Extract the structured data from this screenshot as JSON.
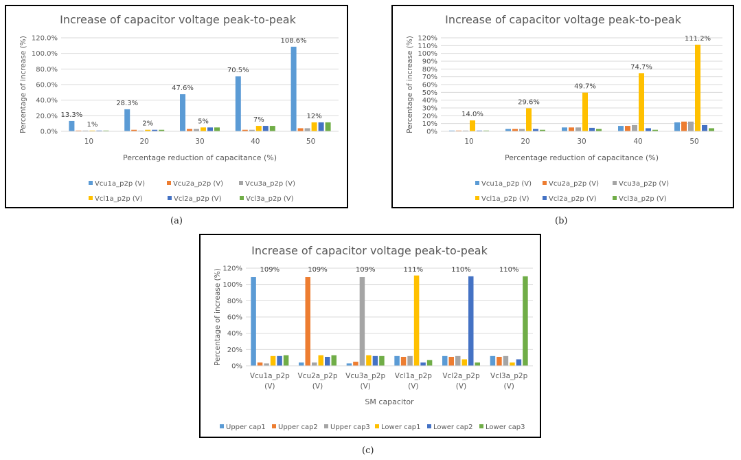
{
  "colors": {
    "Vcu1a": "#5b9bd5",
    "Vcu2a": "#ed7d31",
    "Vcu3a": "#a5a5a5",
    "Vcl1a": "#ffc000",
    "Vcl2a": "#4472c4",
    "Vcl3a": "#70ad47",
    "grid": "#d9d9d9",
    "text": "#595959"
  },
  "captions": [
    "(a)",
    "(b)",
    "(c)"
  ],
  "chart_data": [
    {
      "type": "bar",
      "title": "Increase of capacitor voltage peak-to-peak",
      "xlabel": "Percentage reduction of capacitance (%)",
      "ylabel": "Percentage of increase (%)",
      "ylim": [
        0,
        120
      ],
      "yticks": [
        "0.0%",
        "20.0%",
        "40.0%",
        "60.0%",
        "80.0%",
        "100.0%",
        "120.0%"
      ],
      "categories": [
        "10",
        "20",
        "30",
        "40",
        "50"
      ],
      "legend_position": "bottom",
      "series": [
        {
          "name": "Vcu1a_p2p (V)",
          "values": [
            13.3,
            28.3,
            47.6,
            70.5,
            108.6
          ],
          "labels": [
            "13.3%",
            "28.3%",
            "47.6%",
            "70.5%",
            "108.6%"
          ]
        },
        {
          "name": "Vcu2a_p2p (V)",
          "values": [
            1,
            2,
            3,
            2,
            4
          ]
        },
        {
          "name": "Vcu3a_p2p (V)",
          "values": [
            1,
            1,
            3,
            2,
            4
          ]
        },
        {
          "name": "Vcl1a_p2p (V)",
          "values": [
            1,
            2,
            5,
            7,
            11.5
          ],
          "labels": [
            "1%",
            "2%",
            "5%",
            "7%",
            "12%"
          ]
        },
        {
          "name": "Vcl2a_p2p (V)",
          "values": [
            1,
            2,
            5,
            7,
            11.5
          ]
        },
        {
          "name": "Vcl3a_p2p (V)",
          "values": [
            1,
            2,
            5,
            7,
            11.5
          ]
        }
      ]
    },
    {
      "type": "bar",
      "title": "Increase of capacitor voltage peak-to-peak",
      "xlabel": "Percentage reduction of capacitance (%)",
      "ylabel": "Percentage of increase (%)",
      "ylim": [
        0,
        120
      ],
      "yticks": [
        "0%",
        "10%",
        "20%",
        "30%",
        "40%",
        "50%",
        "60%",
        "70%",
        "80%",
        "90%",
        "100%",
        "110%",
        "120%"
      ],
      "categories": [
        "10",
        "20",
        "30",
        "40",
        "50"
      ],
      "legend_position": "bottom",
      "series": [
        {
          "name": "Vcu1a_p2p (V)",
          "values": [
            1,
            3,
            5,
            7,
            11.5
          ]
        },
        {
          "name": "Vcu2a_p2p (V)",
          "values": [
            1,
            3,
            5,
            7,
            12.5
          ]
        },
        {
          "name": "Vcu3a_p2p (V)",
          "values": [
            1,
            3,
            5,
            8,
            12.5
          ]
        },
        {
          "name": "Vcl1a_p2p (V)",
          "values": [
            14.0,
            29.6,
            49.7,
            74.7,
            111.2
          ],
          "labels": [
            "14.0%",
            "29.6%",
            "49.7%",
            "74.7%",
            "111.2%"
          ]
        },
        {
          "name": "Vcl2a_p2p (V)",
          "values": [
            1,
            3,
            4.5,
            4,
            8
          ]
        },
        {
          "name": "Vcl3a_p2p (V)",
          "values": [
            1,
            2,
            3,
            2,
            4
          ]
        }
      ]
    },
    {
      "type": "bar",
      "title": "Increase of capacitor voltage peak-to-peak",
      "xlabel": "SM capacitor",
      "ylabel": "Percentage of increase (%)",
      "ylim": [
        0,
        120
      ],
      "yticks": [
        "0%",
        "20%",
        "40%",
        "60%",
        "80%",
        "100%",
        "120%"
      ],
      "categories": [
        [
          "Vcu1a_p2p",
          "(V)"
        ],
        [
          "Vcu2a_p2p",
          "(V)"
        ],
        [
          "Vcu3a_p2p",
          "(V)"
        ],
        [
          "Vcl1a_p2p",
          "(V)"
        ],
        [
          "Vcl2a_p2p",
          "(V)"
        ],
        [
          "Vcl3a_p2p",
          "(V)"
        ]
      ],
      "legend_position": "bottom",
      "top_labels": [
        "109%",
        "109%",
        "109%",
        "111%",
        "110%",
        "110%"
      ],
      "series": [
        {
          "name": "Upper cap1",
          "values": [
            109,
            4,
            3,
            12,
            12,
            12
          ]
        },
        {
          "name": "Upper cap2",
          "values": [
            4,
            109,
            5,
            11,
            11,
            11
          ]
        },
        {
          "name": "Upper cap3",
          "values": [
            3,
            4,
            109,
            12,
            12,
            12
          ]
        },
        {
          "name": "Lower cap1",
          "values": [
            12,
            13,
            13,
            111,
            8,
            4
          ]
        },
        {
          "name": "Lower cap2",
          "values": [
            12,
            11,
            12,
            4,
            110,
            8
          ]
        },
        {
          "name": "Lower cap3",
          "values": [
            13,
            13,
            12,
            7,
            4,
            110
          ]
        }
      ]
    }
  ]
}
